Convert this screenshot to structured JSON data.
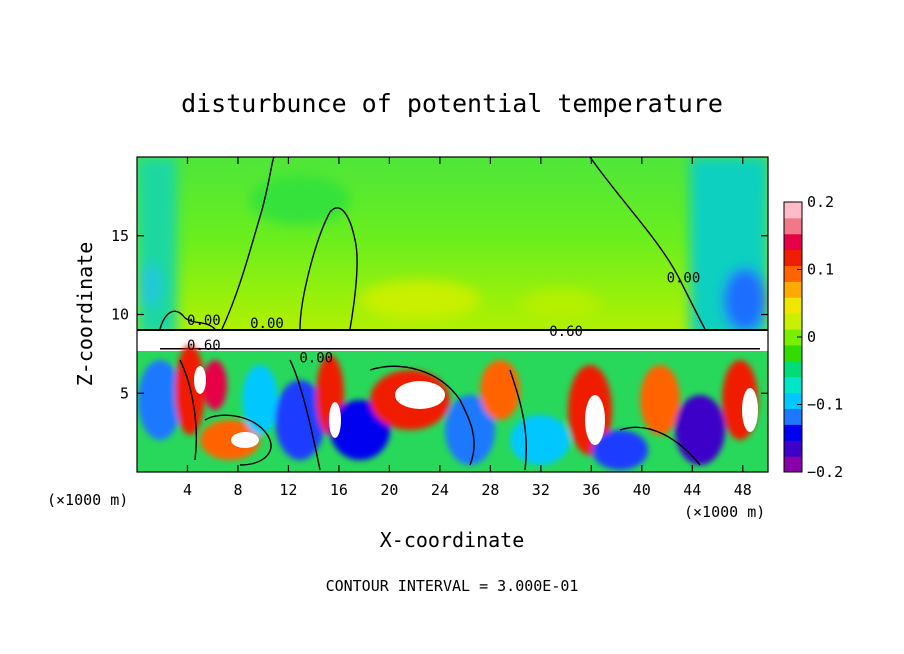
{
  "chart_data": {
    "type": "heatmap",
    "title": "disturbunce of potential temperature",
    "xlabel": "X-coordinate",
    "ylabel": "Z-coordinate",
    "x_unit_left": "(×1000 m)",
    "x_unit_right": "(×1000 m)",
    "xlim": [
      0,
      50
    ],
    "ylim": [
      0,
      20
    ],
    "xticks": [
      4,
      8,
      12,
      16,
      20,
      24,
      28,
      32,
      36,
      40,
      44,
      48
    ],
    "yticks": [
      5,
      10,
      15
    ],
    "contour_interval_text": "CONTOUR INTERVAL = 3.000E-01",
    "contour_labels": [
      {
        "text": "0.00",
        "x": 5.3,
        "z": 9.6
      },
      {
        "text": "0.00",
        "x": 10.3,
        "z": 9.4
      },
      {
        "text": "0.00",
        "x": 43.3,
        "z": 12.3
      },
      {
        "text": "0.00",
        "x": 14.2,
        "z": 7.2
      },
      {
        "text": "0.60",
        "x": 5.3,
        "z": 8.0
      },
      {
        "text": "0.60",
        "x": 34.0,
        "z": 8.9
      }
    ],
    "colorbar": {
      "min": -0.2,
      "max": 0.2,
      "tick_labels": [
        "0.2",
        "0.1",
        "0",
        "−0.1",
        "−0.2"
      ],
      "tick_values": [
        0.2,
        0.1,
        0,
        -0.1,
        -0.2
      ],
      "colors": [
        "#8a00a8",
        "#3c00c8",
        "#0000f0",
        "#1e78ff",
        "#00c8ff",
        "#00e6c8",
        "#00dc78",
        "#32dc00",
        "#78f000",
        "#c8f000",
        "#f0e600",
        "#ffaa00",
        "#ff6400",
        "#f01e00",
        "#e60046",
        "#f07888",
        "#ffbcc8"
      ]
    }
  }
}
